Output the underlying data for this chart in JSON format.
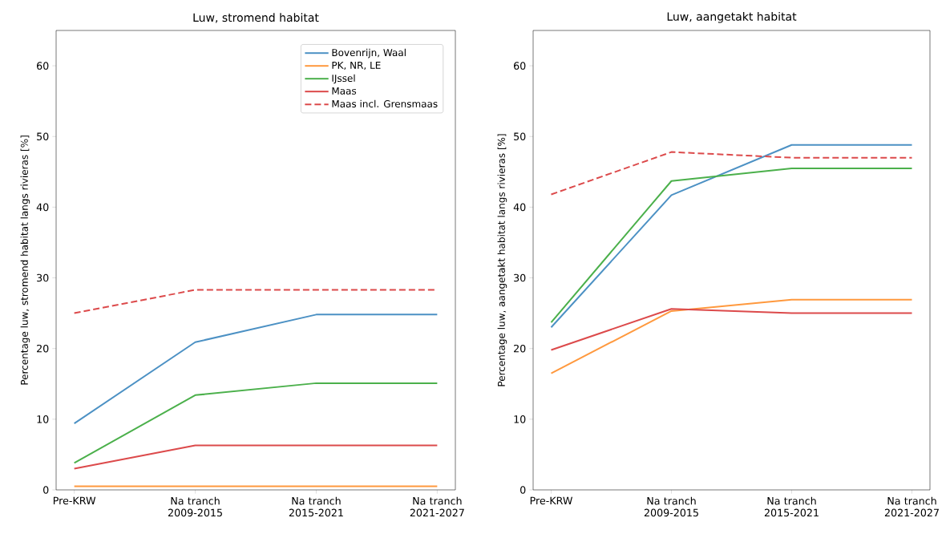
{
  "chart_data": [
    {
      "type": "line",
      "title": "Luw, stromend habitat",
      "ylabel": "Percentage luw, stromend habitat langs rivieras [%]",
      "categories": [
        "Pre-KRW",
        "Na tranch 2009-2015",
        "Na tranch 2015-2021",
        "Na tranch 2021-2027"
      ],
      "ylim": [
        0,
        65
      ],
      "yticks": [
        0,
        10,
        20,
        30,
        40,
        50,
        60
      ],
      "legend": "top right",
      "series": [
        {
          "name": "Bovenrijn, Waal",
          "color": "#4c91c4",
          "line_style": "solid",
          "values": [
            9.4,
            20.9,
            24.8,
            24.8
          ]
        },
        {
          "name": "PK, NR, LE",
          "color": "#ff993e",
          "line_style": "solid",
          "values": [
            0.5,
            0.5,
            0.5,
            0.5
          ]
        },
        {
          "name": "IJssel",
          "color": "#4bb04b",
          "line_style": "solid",
          "values": [
            3.8,
            13.4,
            15.1,
            15.1
          ]
        },
        {
          "name": "Maas",
          "color": "#dc4a4b",
          "line_style": "solid",
          "values": [
            3.0,
            6.3,
            6.3,
            6.3
          ]
        },
        {
          "name": "Maas incl. Grensmaas",
          "color": "#dc4a4b",
          "line_style": "dashed",
          "values": [
            25.0,
            28.3,
            28.3,
            28.3
          ]
        }
      ]
    },
    {
      "type": "line",
      "title": "Luw, aangetakt habitat",
      "ylabel": "Percentage luw, aangetakt habitat langs rivieras [%]",
      "categories": [
        "Pre-KRW",
        "Na tranch 2009-2015",
        "Na tranch 2015-2021",
        "Na tranch 2021-2027"
      ],
      "ylim": [
        0,
        65
      ],
      "yticks": [
        0,
        10,
        20,
        30,
        40,
        50,
        60
      ],
      "series": [
        {
          "color": "#4c91c4",
          "line_style": "solid",
          "values": [
            23.0,
            41.7,
            48.8,
            48.8
          ]
        },
        {
          "color": "#ff993e",
          "line_style": "solid",
          "values": [
            16.5,
            25.3,
            26.9,
            26.9
          ]
        },
        {
          "color": "#4bb04b",
          "line_style": "solid",
          "values": [
            23.7,
            43.7,
            45.5,
            45.5
          ]
        },
        {
          "color": "#dc4a4b",
          "line_style": "solid",
          "values": [
            19.8,
            25.6,
            25.0,
            25.0
          ]
        },
        {
          "color": "#dc4a4b",
          "line_style": "dashed",
          "values": [
            41.8,
            47.8,
            47.0,
            47.0
          ]
        }
      ]
    }
  ]
}
